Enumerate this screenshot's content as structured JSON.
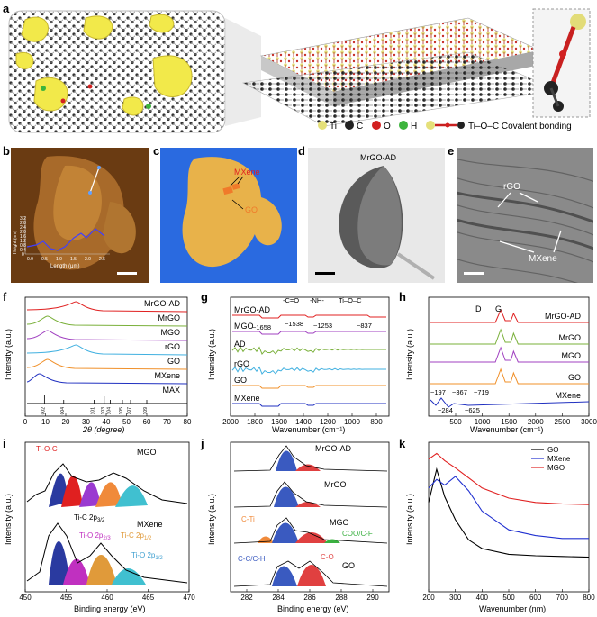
{
  "panel_labels": {
    "a": "a",
    "b": "b",
    "c": "c",
    "d": "d",
    "e": "e",
    "f": "f",
    "g": "g",
    "h": "h",
    "i": "i",
    "j": "j",
    "k": "k"
  },
  "legend_a": {
    "ti": "Ti",
    "c": "C",
    "o": "O",
    "h": "H",
    "bond": "Ti–O–C Covalent bonding"
  },
  "colors": {
    "ti": "#e5e07a",
    "c": "#222222",
    "o": "#d22020",
    "h": "#3cb43c",
    "mxene_flake": "#f2e94a",
    "blue_bg": "#2a6ae0",
    "go_sheet": "#e8b24a",
    "mxene_patch": "#f07a2a"
  },
  "panel_b": {
    "ylabel": "Height (nm)",
    "yticks": [
      "3.2",
      "2.8",
      "2.4",
      "2.0",
      "1.6",
      "1.2",
      "0.8",
      "0.4",
      "0"
    ],
    "xticks": [
      "0.0",
      "0.5",
      "1.0",
      "1.5",
      "2.0",
      "2.5"
    ],
    "xlabel": "Length (μm)"
  },
  "panel_c": {
    "mxene": "MXene",
    "go": "GO"
  },
  "panel_d": {
    "label": "MrGO-AD"
  },
  "panel_e": {
    "rgo": "rGO",
    "mxene": "MXene"
  },
  "chart_data": [
    {
      "id": "f",
      "type": "line",
      "xlabel": "2θ (degree)",
      "ylabel": "Intensity (a.u.)",
      "xlim": [
        0,
        80
      ],
      "xticks": [
        "0",
        "10",
        "20",
        "30",
        "40",
        "50",
        "60",
        "70",
        "80"
      ],
      "series": [
        {
          "name": "MrGO-AD",
          "color": "#e02020"
        },
        {
          "name": "MrGO",
          "color": "#7ab03a"
        },
        {
          "name": "MGO",
          "color": "#a040c0"
        },
        {
          "name": "rGO",
          "color": "#40b0e0"
        },
        {
          "name": "GO",
          "color": "#f0902a"
        },
        {
          "name": "MXene",
          "color": "#2030c0"
        },
        {
          "name": "MAX",
          "color": "#000000"
        }
      ],
      "max_peaks": [
        "002",
        "004",
        "101",
        "103",
        "104",
        "105",
        "107",
        "109"
      ]
    },
    {
      "id": "g",
      "type": "line",
      "xlabel": "Wavenumber (cm⁻¹)",
      "ylabel": "Intensity (a.u.)",
      "xlim": [
        2000,
        700
      ],
      "xticks": [
        "2000",
        "1800",
        "1600",
        "1400",
        "1200",
        "1000",
        "800"
      ],
      "series": [
        {
          "name": "MrGO-AD",
          "color": "#e02020"
        },
        {
          "name": "MGO",
          "color": "#a040c0"
        },
        {
          "name": "AD",
          "color": "#7ab03a"
        },
        {
          "name": "rGO",
          "color": "#40b0e0"
        },
        {
          "name": "GO",
          "color": "#f0902a"
        },
        {
          "name": "MXene",
          "color": "#2030c0"
        }
      ],
      "annotations": [
        "-C=O",
        "-NH-",
        "Ti–O–C",
        "~1658",
        "~1538",
        "~1253",
        "~837"
      ]
    },
    {
      "id": "h",
      "type": "line",
      "xlabel": "Wavenumber (cm⁻¹)",
      "ylabel": "Intensity (a.u.)",
      "xlim": [
        0,
        3000
      ],
      "xticks": [
        "500",
        "1000",
        "1500",
        "2000",
        "2500",
        "3000"
      ],
      "series": [
        {
          "name": "MrGO-AD",
          "color": "#e02020"
        },
        {
          "name": "MrGO",
          "color": "#7ab03a"
        },
        {
          "name": "MGO",
          "color": "#a040c0"
        },
        {
          "name": "GO",
          "color": "#f0902a"
        },
        {
          "name": "MXene",
          "color": "#2030c0"
        }
      ],
      "annotations": [
        "D",
        "G",
        "~197",
        "~367",
        "~719",
        "~284",
        "~625"
      ]
    },
    {
      "id": "i",
      "type": "area",
      "xlabel": "Binding energy (eV)",
      "ylabel": "Intensity (a.u.)",
      "xlim": [
        450,
        470
      ],
      "xticks": [
        "450",
        "455",
        "460",
        "465",
        "470"
      ],
      "series": [
        {
          "name": "MGO"
        },
        {
          "name": "MXene"
        }
      ],
      "annotations": {
        "tioc": "Ti-O-C",
        "tic32": "Ti-C 2p",
        "tic32_sub": "3/2",
        "tio23": "Ti-O 2p",
        "tio23_sub": "2/3",
        "tic12": "Ti-C 2p",
        "tic12_sub": "1/2",
        "tio12": "Ti-O 2p",
        "tio12_sub": "1/2"
      }
    },
    {
      "id": "j",
      "type": "area",
      "xlabel": "Binding energy (eV)",
      "ylabel": "Intensity (a.u.)",
      "xlim": [
        281,
        291
      ],
      "xticks": [
        "282",
        "284",
        "286",
        "288",
        "290"
      ],
      "series": [
        {
          "name": "MrGO-AD"
        },
        {
          "name": "MrGO"
        },
        {
          "name": "MGO"
        },
        {
          "name": "GO"
        }
      ],
      "annotations": {
        "cti": "C-Ti",
        "cc": "C-C/C-H",
        "cof": "COO/C-F",
        "co": "C-O"
      }
    },
    {
      "id": "k",
      "type": "line",
      "xlabel": "Wavenumber (nm)",
      "ylabel": "Intensity (a.u.)",
      "xlim": [
        200,
        800
      ],
      "xticks": [
        "200",
        "300",
        "400",
        "500",
        "600",
        "700",
        "800"
      ],
      "series": [
        {
          "name": "GO",
          "color": "#000000",
          "x": [
            200,
            230,
            260,
            300,
            350,
            400,
            500,
            600,
            700,
            800
          ],
          "y": [
            0.62,
            0.85,
            0.66,
            0.5,
            0.36,
            0.3,
            0.26,
            0.25,
            0.245,
            0.24
          ]
        },
        {
          "name": "MXene",
          "color": "#2030d0",
          "x": [
            200,
            230,
            260,
            300,
            350,
            400,
            500,
            600,
            700,
            800
          ],
          "y": [
            0.72,
            0.78,
            0.74,
            0.8,
            0.7,
            0.56,
            0.43,
            0.39,
            0.37,
            0.37
          ]
        },
        {
          "name": "MGO",
          "color": "#e02020",
          "x": [
            200,
            230,
            260,
            300,
            350,
            400,
            500,
            600,
            700,
            800
          ],
          "y": [
            0.92,
            0.96,
            0.91,
            0.86,
            0.79,
            0.72,
            0.65,
            0.62,
            0.61,
            0.605
          ]
        }
      ]
    }
  ]
}
